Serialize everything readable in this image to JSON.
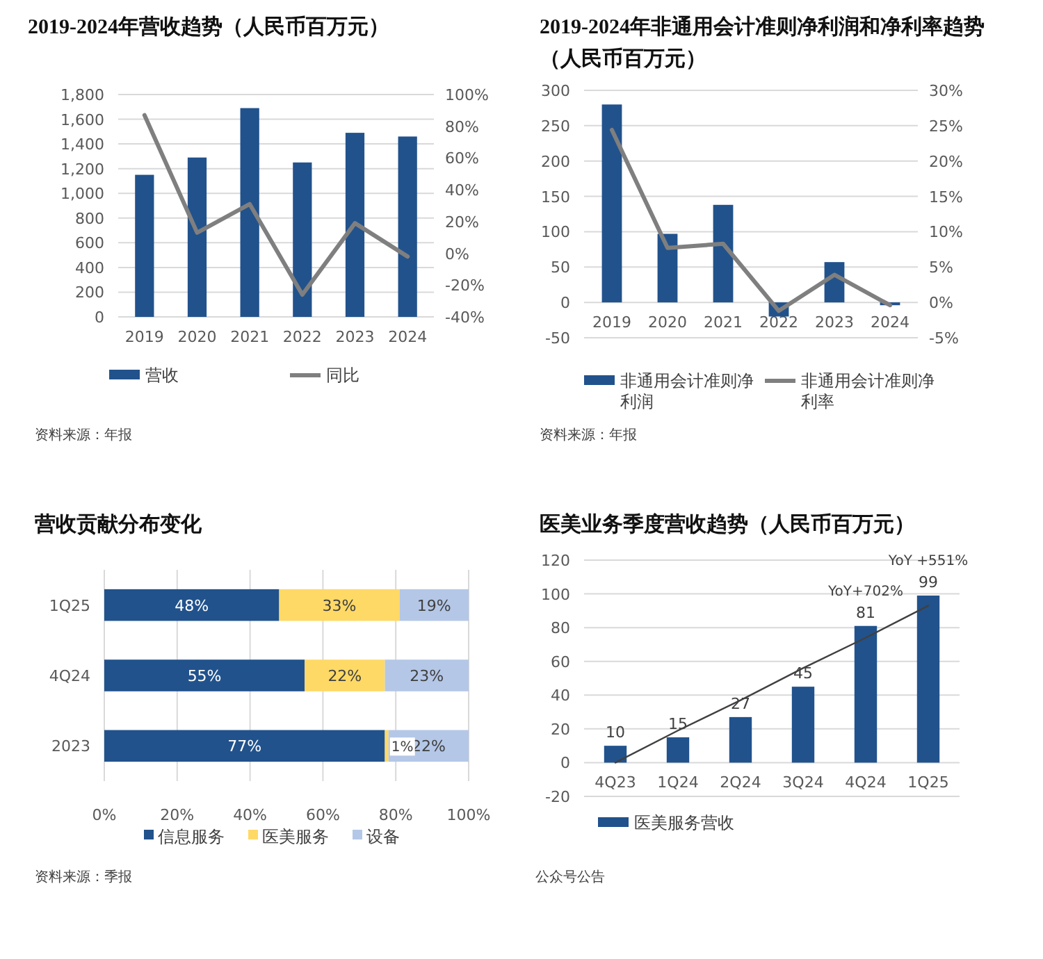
{
  "chart_data": [
    {
      "type": "bar",
      "title": "2019-2024年营收趋势（人民币百万元）",
      "categories": [
        "2019",
        "2020",
        "2021",
        "2022",
        "2023",
        "2024"
      ],
      "series": [
        {
          "name": "营收",
          "type": "bar",
          "color": "#21528c",
          "values": [
            1150,
            1290,
            1690,
            1250,
            1490,
            1460
          ]
        },
        {
          "name": "同比",
          "type": "line",
          "axis": "y2",
          "color": "#7f7f7f",
          "values": [
            87,
            13,
            31,
            -26,
            19,
            -2
          ]
        }
      ],
      "ylim": [
        0,
        1800
      ],
      "yticks": [
        0,
        200,
        400,
        600,
        800,
        {
          "value": 1000,
          "label": "1,000"
        },
        {
          "value": 1200,
          "label": "1,200"
        },
        {
          "value": 1400,
          "label": "1,400"
        },
        {
          "value": 1600,
          "label": "1,600"
        },
        {
          "value": 1800,
          "label": "1,800"
        }
      ],
      "y2lim": [
        -40,
        100
      ],
      "y2ticks": [
        {
          "value": -40,
          "label": "-40%"
        },
        {
          "value": -20,
          "label": "-20%"
        },
        {
          "value": 0,
          "label": "0%"
        },
        {
          "value": 20,
          "label": "20%"
        },
        {
          "value": 40,
          "label": "40%"
        },
        {
          "value": 60,
          "label": "60%"
        },
        {
          "value": 80,
          "label": "80%"
        },
        {
          "value": 100,
          "label": "100%"
        }
      ],
      "grid": "y",
      "legend": "bottom",
      "annotations": [
        "资料来源：年报"
      ]
    },
    {
      "type": "bar",
      "title": "2019-2024年非通用会计准则净利润和净利率趋势（人民币百万元）",
      "categories": [
        "2019",
        "2020",
        "2021",
        "2022",
        "2023",
        "2024"
      ],
      "series": [
        {
          "name": "非通用会计准则净利润",
          "type": "bar",
          "color": "#21528c",
          "values": [
            280,
            97,
            138,
            -20,
            57,
            -4
          ]
        },
        {
          "name": "非通用会计准则净利率",
          "type": "line",
          "axis": "y2",
          "color": "#7f7f7f",
          "values": [
            24.4,
            7.7,
            8.3,
            -1.2,
            3.9,
            -0.4
          ]
        }
      ],
      "ylim": [
        -50,
        300
      ],
      "yticks": [
        -50,
        0,
        50,
        100,
        150,
        200,
        250,
        300
      ],
      "y2lim": [
        -5,
        30
      ],
      "y2ticks": [
        {
          "value": -5,
          "label": "-5%"
        },
        {
          "value": 0,
          "label": "0%"
        },
        {
          "value": 5,
          "label": "5%"
        },
        {
          "value": 10,
          "label": "10%"
        },
        {
          "value": 15,
          "label": "15%"
        },
        {
          "value": 20,
          "label": "20%"
        },
        {
          "value": 25,
          "label": "25%"
        },
        {
          "value": 30,
          "label": "30%"
        }
      ],
      "grid": "y",
      "legend": "bottom",
      "annotations": [
        "资料来源：年报"
      ]
    },
    {
      "type": "bar",
      "title": "营收贡献分布变化",
      "orientation": "horizontal",
      "stacked": true,
      "categories": [
        "1Q25",
        "4Q24",
        "2023"
      ],
      "series": [
        {
          "name": "信息服务",
          "color": "#21528c",
          "values": [
            48,
            55,
            77
          ],
          "value_labels": [
            "48%",
            "55%",
            "77%"
          ]
        },
        {
          "name": "医美服务",
          "color": "#ffd966",
          "values": [
            33,
            22,
            1
          ],
          "value_labels": [
            "33%",
            "22%",
            "1%"
          ]
        },
        {
          "name": "设备",
          "color": "#b4c7e7",
          "values": [
            19,
            23,
            22
          ],
          "value_labels": [
            "19%",
            "23%",
            "22%"
          ]
        }
      ],
      "xlim": [
        0,
        100
      ],
      "xticks": [
        {
          "value": 0,
          "label": "0%"
        },
        {
          "value": 20,
          "label": "20%"
        },
        {
          "value": 40,
          "label": "40%"
        },
        {
          "value": 60,
          "label": "60%"
        },
        {
          "value": 80,
          "label": "80%"
        },
        {
          "value": 100,
          "label": "100%"
        }
      ],
      "grid": "x",
      "legend": "bottom",
      "annotations": [
        "资料来源：季报"
      ]
    },
    {
      "type": "bar",
      "title": "医美业务季度营收趋势（人民币百万元）",
      "categories": [
        "4Q23",
        "1Q24",
        "2Q24",
        "3Q24",
        "4Q24",
        "1Q25"
      ],
      "series": [
        {
          "name": "医美服务营收",
          "type": "bar",
          "color": "#21528c",
          "values": [
            10,
            15,
            27,
            45,
            81,
            99
          ],
          "value_labels": [
            "10",
            "15",
            "27",
            "45",
            "81",
            "99"
          ]
        },
        {
          "type": "line",
          "color": "#404040",
          "values": [
            0,
            19,
            37,
            56,
            74,
            93
          ]
        }
      ],
      "ylim": [
        -20,
        120
      ],
      "yticks": [
        -20,
        0,
        20,
        40,
        60,
        80,
        100,
        120
      ],
      "grid": "y",
      "legend": "bottom left",
      "annotations": [
        {
          "text": "YoY+702%",
          "x": "4Q24",
          "y": 81
        },
        {
          "text": "YoY +551%",
          "x": "1Q25",
          "y": 99
        },
        "公众号公告"
      ]
    }
  ]
}
